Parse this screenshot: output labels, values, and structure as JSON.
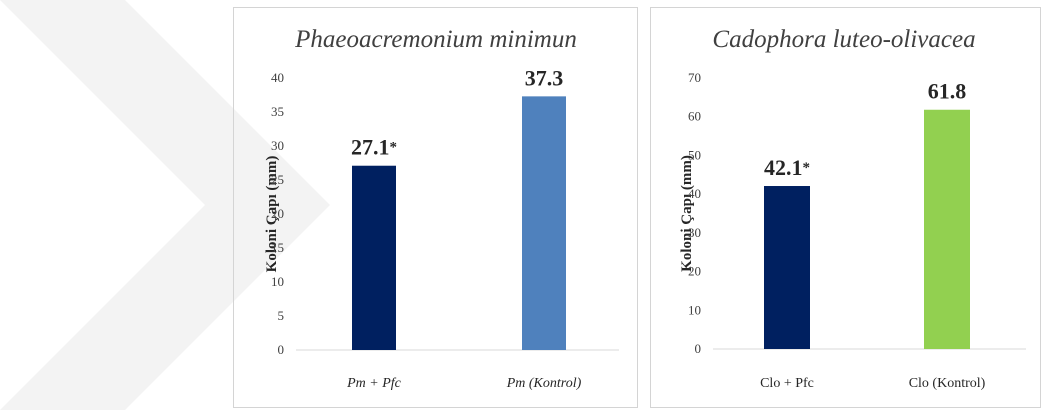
{
  "chart_data": [
    {
      "type": "bar",
      "title": "Phaeoacremonium minimun",
      "ylabel": "Koloni Çapı (mm)",
      "categories": [
        "Pm + Pfc",
        "Pm (Kontrol)"
      ],
      "values": [
        27.1,
        37.3
      ],
      "data_labels": [
        "27.1",
        "37.3"
      ],
      "annotations": [
        "*",
        ""
      ],
      "colors": [
        "#002060",
        "#4F81BD"
      ],
      "ylim": [
        0,
        40
      ],
      "yticks": [
        0,
        5,
        10,
        15,
        20,
        25,
        30,
        35,
        40
      ],
      "category_style": "italic",
      "grid": false
    },
    {
      "type": "bar",
      "title": "Cadophora luteo-olivacea",
      "ylabel": "Koloni Çapı (mm)",
      "categories": [
        "Clo + Pfc",
        "Clo (Kontrol)"
      ],
      "values": [
        42.1,
        61.8
      ],
      "data_labels": [
        "42.1",
        "61.8"
      ],
      "annotations": [
        "*",
        ""
      ],
      "colors": [
        "#002060",
        "#92D050"
      ],
      "ylim": [
        0,
        70
      ],
      "yticks": [
        0,
        10,
        20,
        30,
        40,
        50,
        60,
        70
      ],
      "category_style": "normal",
      "grid": false
    }
  ]
}
